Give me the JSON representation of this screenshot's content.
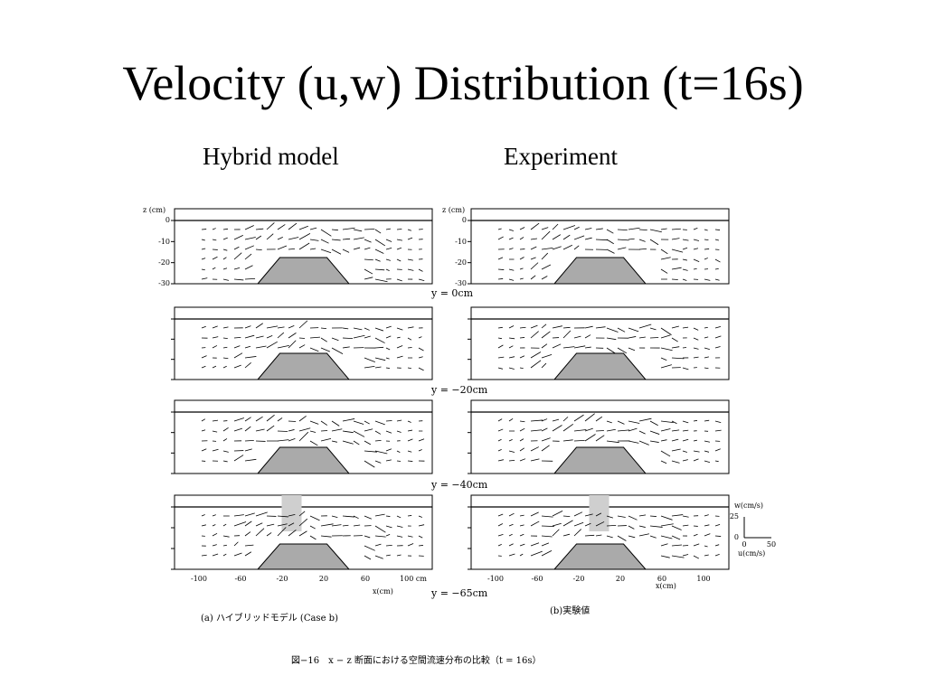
{
  "slide": {
    "title": "Velocity (u,w) Distribution (t=16s)",
    "left_heading": "Hybrid model",
    "right_heading": "Experiment"
  },
  "figure": {
    "z_axis_label": "z (cm)",
    "z_ticks": [
      "0",
      "-10",
      "-20",
      "-30"
    ],
    "x_ticks_left": [
      "-100",
      "-60",
      "-20",
      "20",
      "60",
      "100 cm"
    ],
    "x_ticks_right": [
      "-100",
      "-60",
      "-20",
      "20",
      "60",
      "100"
    ],
    "x_axis_label": "x(cm)",
    "sections": [
      "y = 0cm",
      "y = −20cm",
      "y = −40cm",
      "y = −65cm"
    ],
    "caption_left": "(a) ハイブリッドモデル (Case b)",
    "caption_right": "(b)実験値",
    "scale_w_label": "w(cm/s)",
    "scale_w_ticks": [
      "25",
      "0"
    ],
    "scale_u_ticks": [
      "0",
      "50"
    ],
    "scale_u_label": "u(cm/s)",
    "figure_caption": "図−16　x − z 断面における空間流速分布の比較（t = 16s）"
  }
}
